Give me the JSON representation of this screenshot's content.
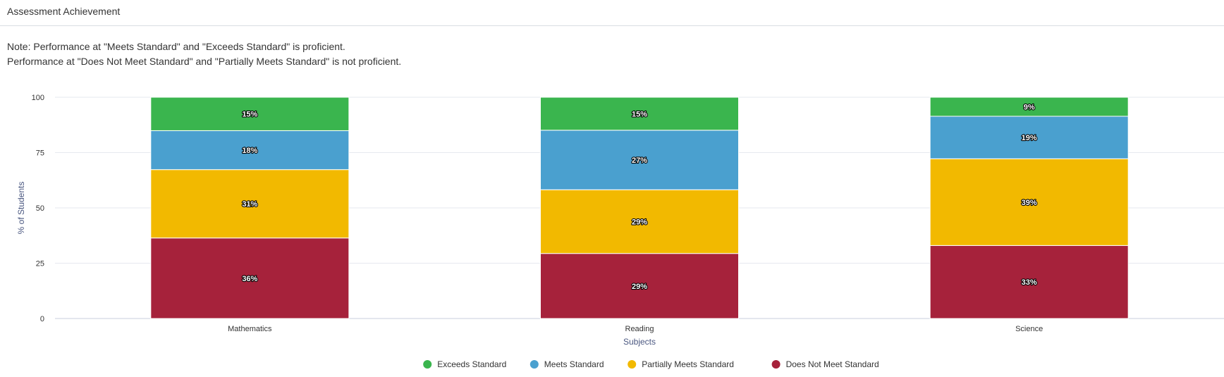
{
  "header": {
    "title": "Assessment Achievement"
  },
  "note": {
    "line1": "Note: Performance at \"Meets Standard\" and \"Exceeds Standard\" is proficient.",
    "line2": "Performance at \"Does Not Meet Standard\" and \"Partially Meets Standard\" is not proficient."
  },
  "chart_data": {
    "type": "bar",
    "stacked": true,
    "categories": [
      "Mathematics",
      "Reading",
      "Science"
    ],
    "xlabel": "Subjects",
    "ylabel": "% of Students",
    "ylim": [
      0,
      100
    ],
    "yticks": [
      0,
      25,
      50,
      75,
      100
    ],
    "grid": true,
    "legend_position": "bottom-center",
    "series": [
      {
        "name": "Does Not Meet Standard",
        "color": "#a6223b",
        "values": [
          36.4,
          29.4,
          33.0
        ],
        "labels": [
          "36%",
          "29%",
          "33%"
        ]
      },
      {
        "name": "Partially Meets Standard",
        "color": "#f2b900",
        "values": [
          30.9,
          28.8,
          39.2
        ],
        "labels": [
          "31%",
          "29%",
          "39%"
        ]
      },
      {
        "name": "Meets Standard",
        "color": "#4aa0cf",
        "values": [
          17.6,
          26.9,
          19.2
        ],
        "labels": [
          "18%",
          "27%",
          "19%"
        ]
      },
      {
        "name": "Exceeds Standard",
        "color": "#3ab54e",
        "values": [
          15.1,
          14.9,
          8.6
        ],
        "labels": [
          "15%",
          "15%",
          "9%"
        ]
      }
    ],
    "legend_order": [
      "Exceeds Standard",
      "Meets Standard",
      "Partially Meets Standard",
      "Does Not Meet Standard"
    ]
  }
}
